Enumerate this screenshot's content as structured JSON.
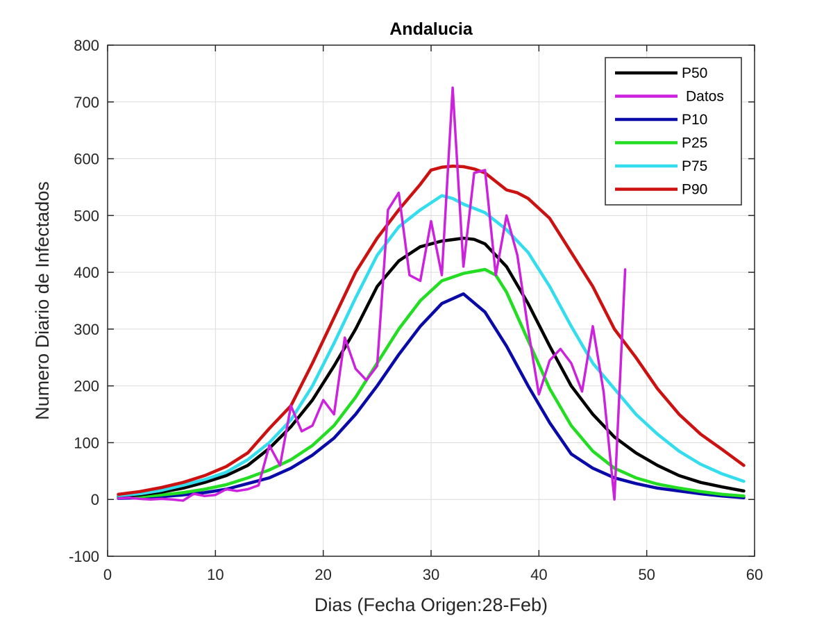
{
  "chart_data": {
    "type": "line",
    "title": "Andalucia",
    "xlabel": "Dias (Fecha Origen:28-Feb)",
    "ylabel": "Numero Diario de Infectados",
    "xlim": [
      0,
      60
    ],
    "ylim": [
      -100,
      800
    ],
    "xticks": [
      0,
      10,
      20,
      30,
      40,
      50,
      60
    ],
    "yticks": [
      -100,
      0,
      100,
      200,
      300,
      400,
      500,
      600,
      700,
      800
    ],
    "grid": true,
    "legend_position": "top-right",
    "series": [
      {
        "name": "P50",
        "color": "#000000",
        "x": [
          1,
          3,
          5,
          7,
          9,
          11,
          13,
          15,
          17,
          19,
          21,
          23,
          25,
          27,
          29,
          31,
          33,
          34,
          35,
          37,
          39,
          41,
          43,
          45,
          47,
          49,
          51,
          53,
          55,
          57,
          59
        ],
        "y": [
          6,
          8,
          13,
          20,
          30,
          42,
          60,
          90,
          128,
          175,
          235,
          300,
          375,
          420,
          445,
          455,
          460,
          458,
          450,
          410,
          345,
          270,
          200,
          150,
          110,
          82,
          60,
          42,
          30,
          22,
          15
        ]
      },
      {
        "name": "Datos",
        "color": "#cc22dd",
        "x": [
          1,
          2,
          3,
          4,
          5,
          6,
          7,
          8,
          9,
          10,
          11,
          12,
          13,
          14,
          15,
          16,
          17,
          18,
          19,
          20,
          21,
          22,
          23,
          24,
          25,
          26,
          27,
          28,
          29,
          30,
          31,
          32,
          33,
          34,
          35,
          36,
          37,
          38,
          39,
          40,
          41,
          42,
          43,
          44,
          45,
          46,
          47,
          48
        ],
        "y": [
          2,
          3,
          1,
          0,
          1,
          0,
          -2,
          10,
          6,
          8,
          18,
          15,
          18,
          25,
          95,
          60,
          165,
          120,
          130,
          175,
          150,
          285,
          230,
          210,
          235,
          510,
          540,
          395,
          385,
          490,
          395,
          725,
          410,
          575,
          580,
          395,
          500,
          430,
          300,
          185,
          245,
          265,
          240,
          190,
          305,
          190,
          0,
          405
        ]
      },
      {
        "name": "P10",
        "color": "#0a0aa8",
        "x": [
          1,
          3,
          5,
          7,
          9,
          11,
          13,
          15,
          17,
          19,
          21,
          23,
          25,
          27,
          29,
          31,
          33,
          35,
          37,
          39,
          41,
          43,
          45,
          47,
          49,
          51,
          53,
          55,
          57,
          59
        ],
        "y": [
          2,
          3,
          5,
          8,
          12,
          18,
          28,
          38,
          55,
          78,
          108,
          150,
          200,
          255,
          305,
          345,
          362,
          330,
          270,
          200,
          135,
          80,
          55,
          38,
          28,
          20,
          15,
          10,
          6,
          3
        ]
      },
      {
        "name": "P25",
        "color": "#22dd22",
        "x": [
          1,
          3,
          5,
          7,
          9,
          11,
          13,
          15,
          17,
          19,
          21,
          23,
          25,
          27,
          29,
          31,
          33,
          35,
          36,
          37,
          39,
          41,
          43,
          45,
          47,
          49,
          51,
          53,
          55,
          57,
          59
        ],
        "y": [
          3,
          5,
          8,
          12,
          18,
          26,
          38,
          52,
          70,
          95,
          130,
          180,
          240,
          300,
          350,
          385,
          398,
          405,
          395,
          365,
          280,
          195,
          130,
          85,
          55,
          38,
          27,
          20,
          14,
          9,
          6
        ]
      },
      {
        "name": "P75",
        "color": "#33ddee",
        "x": [
          1,
          3,
          5,
          7,
          9,
          11,
          13,
          15,
          17,
          19,
          21,
          23,
          25,
          27,
          29,
          31,
          32,
          33,
          35,
          37,
          39,
          41,
          43,
          45,
          47,
          49,
          51,
          53,
          55,
          57,
          59
        ],
        "y": [
          7,
          10,
          16,
          25,
          35,
          48,
          70,
          100,
          140,
          200,
          275,
          355,
          430,
          480,
          510,
          535,
          530,
          520,
          505,
          475,
          435,
          375,
          305,
          240,
          195,
          150,
          115,
          85,
          62,
          45,
          32
        ]
      },
      {
        "name": "P90",
        "color": "#cc1111",
        "x": [
          1,
          3,
          5,
          7,
          9,
          11,
          13,
          15,
          17,
          19,
          21,
          23,
          25,
          27,
          29,
          30,
          31,
          32,
          33,
          34,
          35,
          36,
          37,
          38,
          39,
          41,
          43,
          45,
          47,
          49,
          51,
          53,
          55,
          57,
          59
        ],
        "y": [
          9,
          14,
          21,
          30,
          42,
          58,
          82,
          125,
          165,
          240,
          320,
          400,
          460,
          510,
          555,
          580,
          585,
          587,
          586,
          582,
          575,
          560,
          545,
          540,
          530,
          495,
          435,
          375,
          300,
          250,
          195,
          150,
          115,
          88,
          60
        ]
      }
    ]
  }
}
